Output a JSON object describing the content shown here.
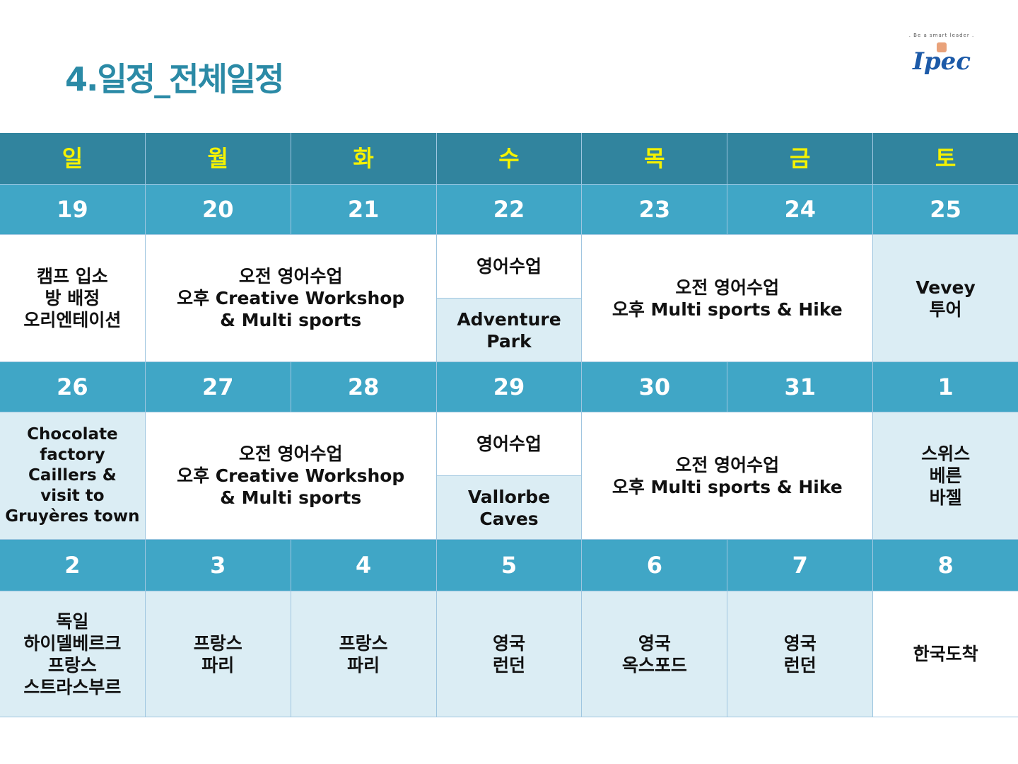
{
  "title": "4.일정_전체일정",
  "logo": {
    "tagline": ". Be a smart leader .",
    "name": "Ipec"
  },
  "weekdays": [
    "일",
    "월",
    "화",
    "수",
    "목",
    "금",
    "토"
  ],
  "weeks": [
    {
      "dates": [
        "19",
        "20",
        "21",
        "22",
        "23",
        "24",
        "25"
      ],
      "events": {
        "sun": "캠프 입소\n방 배정\n오리엔테이션",
        "mon_tue": "오전 영어수업\n오후 Creative Workshop\n& Multi sports",
        "wed_top": "영어수업",
        "wed_bottom": "Adventure\nPark",
        "thu_fri": "오전 영어수업\n오후 Multi sports & Hike",
        "sat": "Vevey\n투어"
      }
    },
    {
      "dates": [
        "26",
        "27",
        "28",
        "29",
        "30",
        "31",
        "1"
      ],
      "events": {
        "sun": "Chocolate\nfactory\nCaillers &\nvisit to\nGruyères town",
        "mon_tue": "오전 영어수업\n오후 Creative Workshop\n& Multi sports",
        "wed_top": "영어수업",
        "wed_bottom": "Vallorbe\nCaves",
        "thu_fri": "오전 영어수업\n오후 Multi sports & Hike",
        "sat": "스위스\n베른\n바젤"
      }
    },
    {
      "dates": [
        "2",
        "3",
        "4",
        "5",
        "6",
        "7",
        "8"
      ],
      "events": [
        "독일\n하이델베르크\n프랑스\n스트라스부르",
        "프랑스\n파리",
        "프랑스\n파리",
        "영국\n런던",
        "영국\n옥스포드",
        "영국\n런던",
        "한국도착"
      ]
    }
  ],
  "colors": {
    "title": "#2b8aa6",
    "weekday_bg": "#31849e",
    "weekday_text": "#f5f200",
    "date_bg": "#40a6c6",
    "highlight_bg": "#dbedf4"
  }
}
